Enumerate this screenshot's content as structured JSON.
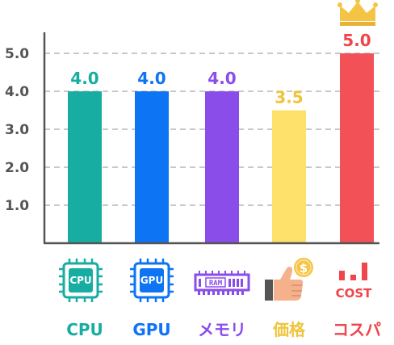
{
  "chart_data": {
    "type": "bar",
    "categories": [
      "CPU",
      "GPU",
      "メモリ",
      "価格",
      "コスパ"
    ],
    "values": [
      4.0,
      4.0,
      4.0,
      3.5,
      5.0
    ],
    "value_labels": [
      "4.0",
      "4.0",
      "4.0",
      "3.5",
      "5.0"
    ],
    "yticks": [
      1.0,
      2.0,
      3.0,
      4.0,
      5.0
    ],
    "ytick_labels": [
      "1.0",
      "2.0",
      "3.0",
      "4.0",
      "5.0"
    ],
    "ylim": [
      0,
      5.5
    ],
    "grid": true,
    "colors": [
      "#18ada2",
      "#0d74f3",
      "#8a4dea",
      "#fde16a",
      "#f25158"
    ],
    "label_colors": [
      "#18ada2",
      "#0d74f3",
      "#8a4dea",
      "#f0c43a",
      "#f0454a"
    ],
    "icons": [
      "cpu-chip-icon",
      "gpu-chip-icon",
      "ram-module-icon",
      "price-thumbs-up-coin-icon",
      "cost-bar-icon"
    ],
    "icon_text": {
      "cpu": "CPU",
      "gpu": "GPU",
      "ram": "RAM",
      "price": "$",
      "cost": "COST"
    },
    "highlight": {
      "index": 4,
      "icon": "crown-icon",
      "color": "#f6c445"
    }
  }
}
